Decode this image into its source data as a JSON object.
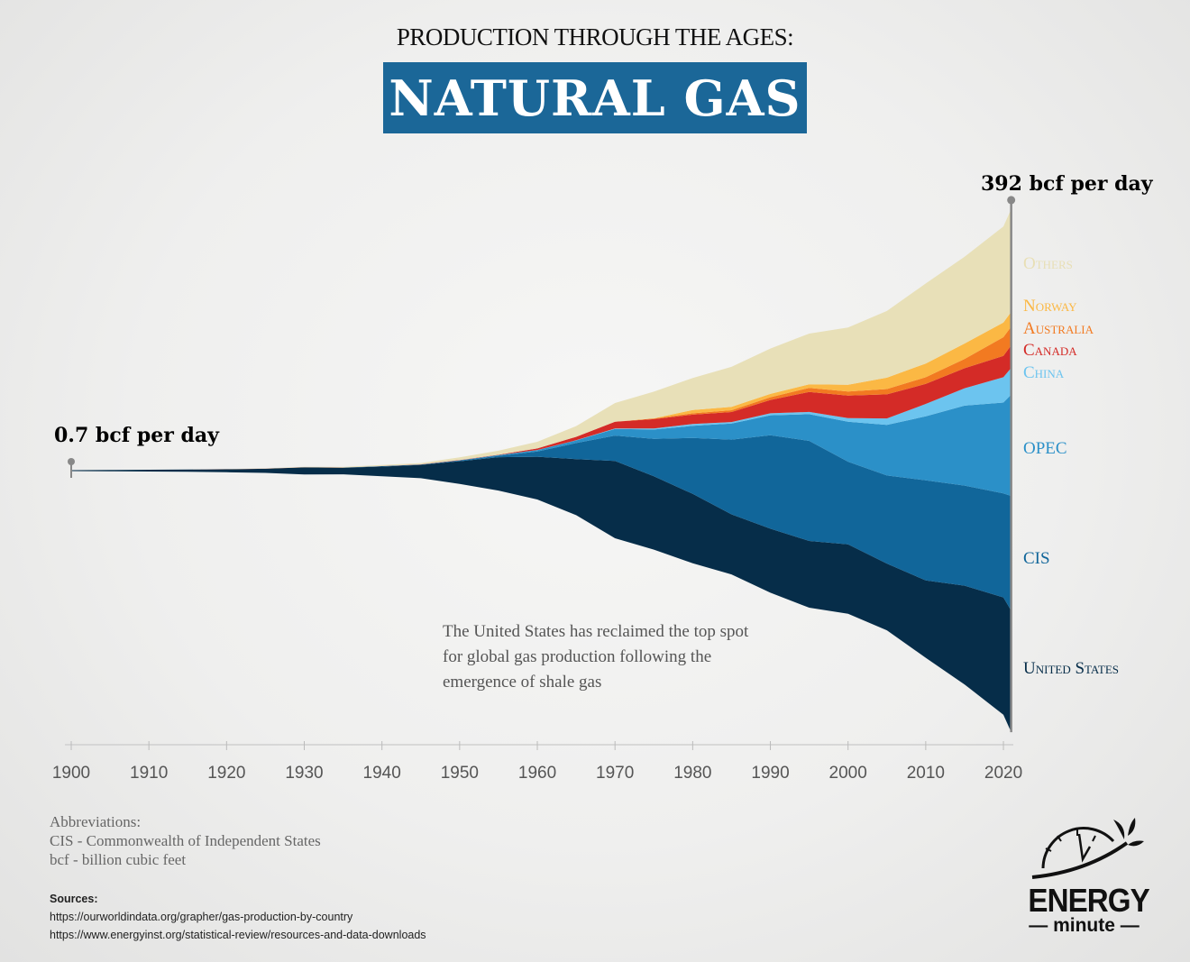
{
  "header": {
    "supertitle": "PRODUCTION THROUGH THE AGES:",
    "title": "NATURAL GAS"
  },
  "chart_data": {
    "type": "area",
    "stacking": "streamgraph-symmetric",
    "unit": "bcf per day",
    "x": [
      1900,
      1905,
      1910,
      1915,
      1920,
      1925,
      1930,
      1935,
      1940,
      1945,
      1950,
      1955,
      1960,
      1965,
      1970,
      1975,
      1980,
      1985,
      1990,
      1995,
      2000,
      2005,
      2010,
      2015,
      2020,
      2021
    ],
    "xlim": [
      1900,
      2021
    ],
    "xticks": [
      "1900",
      "1910",
      "1920",
      "1930",
      "1940",
      "1950",
      "1960",
      "1970",
      "1980",
      "1990",
      "2000",
      "2010",
      "2020"
    ],
    "series": [
      {
        "name": "United States",
        "color": "#062d49",
        "values": [
          0.7,
          1.0,
          1.4,
          1.7,
          2.2,
          3.1,
          5.3,
          5.0,
          7.3,
          10,
          17,
          25,
          32,
          42,
          58,
          55,
          52,
          45,
          48,
          50,
          52,
          50,
          58,
          74,
          88,
          91
        ]
      },
      {
        "name": "CIS",
        "color": "#11669a",
        "values": [
          0,
          0,
          0,
          0,
          0,
          0,
          0,
          0,
          0.3,
          0.3,
          0.6,
          1,
          4,
          12,
          19,
          28,
          42,
          56,
          70,
          75,
          62,
          66,
          75,
          75,
          78,
          86
        ]
      },
      {
        "name": "OPEC",
        "color": "#2b90c8",
        "values": [
          0,
          0,
          0,
          0,
          0,
          0,
          0,
          0,
          0,
          0,
          0.2,
          0.5,
          1,
          2,
          5,
          7,
          9,
          12,
          15,
          20,
          30,
          38,
          48,
          60,
          68,
          76
        ]
      },
      {
        "name": "China",
        "color": "#6cc4ef",
        "values": [
          0,
          0,
          0,
          0,
          0,
          0,
          0,
          0,
          0,
          0,
          0,
          0,
          0.1,
          0.1,
          0.3,
          0.8,
          1.4,
          1.2,
          1.5,
          1.7,
          2.6,
          4.8,
          9.3,
          13,
          19,
          20
        ]
      },
      {
        "name": "Canada",
        "color": "#d42b27",
        "values": [
          0,
          0,
          0,
          0.1,
          0.1,
          0.1,
          0.1,
          0.1,
          0.1,
          0.1,
          0.2,
          0.3,
          1.1,
          2.6,
          5,
          7,
          7,
          7.5,
          10,
          15,
          17,
          18,
          15,
          15,
          16,
          17
        ]
      },
      {
        "name": "Australia",
        "color": "#f27a21",
        "values": [
          0,
          0,
          0,
          0,
          0,
          0,
          0,
          0,
          0,
          0,
          0,
          0,
          0,
          0,
          0.1,
          0.5,
          1,
          1.3,
          2,
          3,
          3,
          4,
          5,
          7,
          14,
          14
        ]
      },
      {
        "name": "Norway",
        "color": "#fbb844",
        "values": [
          0,
          0,
          0,
          0,
          0,
          0,
          0,
          0,
          0,
          0,
          0,
          0,
          0,
          0,
          0,
          0.1,
          2.5,
          2.5,
          2.5,
          2.7,
          5,
          8.5,
          10.3,
          11.5,
          11,
          11
        ]
      },
      {
        "name": "Others",
        "color": "#e8e0b8",
        "values": [
          0,
          0,
          0,
          0,
          0.1,
          0.2,
          0.4,
          0.5,
          0.8,
          1,
          2,
          3,
          5,
          8,
          14,
          20,
          24,
          30,
          34,
          38,
          43,
          50,
          60,
          65,
          72,
          77
        ]
      }
    ],
    "annotations": {
      "start": "0.7 bcf per day",
      "end": "392 bcf per day",
      "note": "The United States has reclaimed the top spot for global gas production following the emergence of shale gas"
    },
    "legend_placement": "right, labels aligned to series",
    "labels": {
      "others": "Others",
      "norway": "Norway",
      "australia": "Australia",
      "canada": "Canada",
      "china": "China",
      "opec": "OPEC",
      "cis": "CIS",
      "us": "United States"
    }
  },
  "footer": {
    "abbrev_title": "Abbreviations:",
    "abbrev_cis": "CIS - Commonwealth of Independent States",
    "abbrev_bcf": "bcf - billion cubic feet",
    "sources_title": "Sources:",
    "source_1": "https://ourworldindata.org/grapher/gas-production-by-country",
    "source_2": "https://www.energyinst.org/statistical-review/resources-and-data-downloads"
  },
  "logo": {
    "brand": "ENERGY",
    "sub": "minute"
  }
}
